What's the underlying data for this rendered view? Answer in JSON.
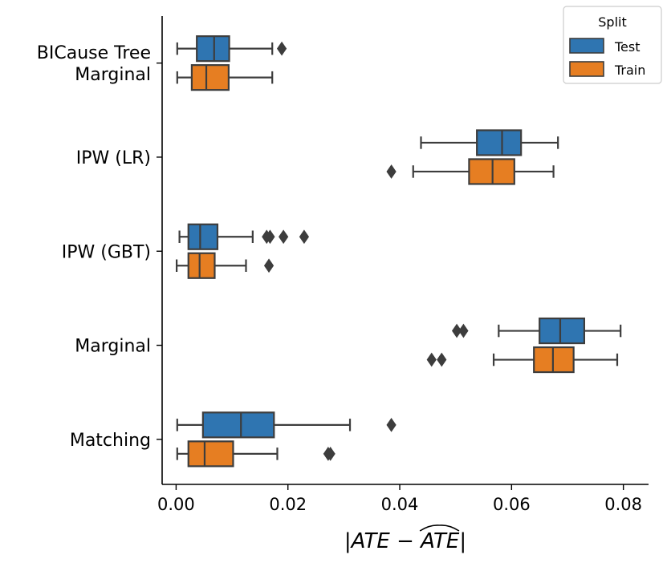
{
  "chart_data": {
    "type": "boxplot",
    "orientation": "horizontal",
    "title": "",
    "xlabel": "|ATE − ATE^|",
    "xlabel_parts": {
      "prefix": "|ATE − ",
      "hatted": "ATE",
      "suffix": "|"
    },
    "ylabel": "",
    "xlim": [
      -0.0025,
      0.0845
    ],
    "xticks": [
      0.0,
      0.02,
      0.04,
      0.06,
      0.08
    ],
    "xtick_labels": [
      "0.00",
      "0.02",
      "0.04",
      "0.06",
      "0.08"
    ],
    "grid": false,
    "categories": [
      {
        "lines": [
          "BICause Tree",
          "Marginal"
        ]
      },
      {
        "lines": [
          "IPW (LR)"
        ]
      },
      {
        "lines": [
          "IPW (GBT)"
        ]
      },
      {
        "lines": [
          "Marginal"
        ]
      },
      {
        "lines": [
          "Matching"
        ]
      }
    ],
    "legend": {
      "title": "Split",
      "position": "top-right",
      "entries": [
        {
          "name": "Test",
          "color": "#2f75b1"
        },
        {
          "name": "Train",
          "color": "#e67e22"
        }
      ]
    },
    "series": [
      {
        "name": "Test",
        "color": "#2f75b1",
        "boxes": [
          {
            "whisker_low": 0.0002,
            "q1": 0.0037,
            "median": 0.0068,
            "q3": 0.0095,
            "whisker_high": 0.0172,
            "outliers": [
              0.0189
            ]
          },
          {
            "whisker_low": 0.0438,
            "q1": 0.0538,
            "median": 0.0583,
            "q3": 0.0617,
            "whisker_high": 0.0683,
            "outliers": []
          },
          {
            "whisker_low": 0.0006,
            "q1": 0.0022,
            "median": 0.0043,
            "q3": 0.0074,
            "whisker_high": 0.0137,
            "outliers": [
              0.0162,
              0.0168,
              0.0192,
              0.0229
            ]
          },
          {
            "whisker_low": 0.0577,
            "q1": 0.065,
            "median": 0.0687,
            "q3": 0.073,
            "whisker_high": 0.0795,
            "outliers": [
              0.0502,
              0.0514
            ]
          },
          {
            "whisker_low": 0.0002,
            "q1": 0.0048,
            "median": 0.0116,
            "q3": 0.0175,
            "whisker_high": 0.0311,
            "outliers": [
              0.0385
            ]
          }
        ]
      },
      {
        "name": "Train",
        "color": "#e67e22",
        "boxes": [
          {
            "whisker_low": 0.0002,
            "q1": 0.0028,
            "median": 0.0054,
            "q3": 0.0094,
            "whisker_high": 0.0172,
            "outliers": []
          },
          {
            "whisker_low": 0.0424,
            "q1": 0.0524,
            "median": 0.0566,
            "q3": 0.0605,
            "whisker_high": 0.0675,
            "outliers": [
              0.0385
            ]
          },
          {
            "whisker_low": 0.0001,
            "q1": 0.0022,
            "median": 0.0042,
            "q3": 0.0069,
            "whisker_high": 0.0125,
            "outliers": [
              0.0166
            ]
          },
          {
            "whisker_low": 0.0568,
            "q1": 0.064,
            "median": 0.0674,
            "q3": 0.0711,
            "whisker_high": 0.0789,
            "outliers": [
              0.0457,
              0.0475
            ]
          },
          {
            "whisker_low": 0.0002,
            "q1": 0.0022,
            "median": 0.0051,
            "q3": 0.0102,
            "whisker_high": 0.0181,
            "outliers": [
              0.0272,
              0.0276
            ]
          }
        ]
      }
    ]
  }
}
